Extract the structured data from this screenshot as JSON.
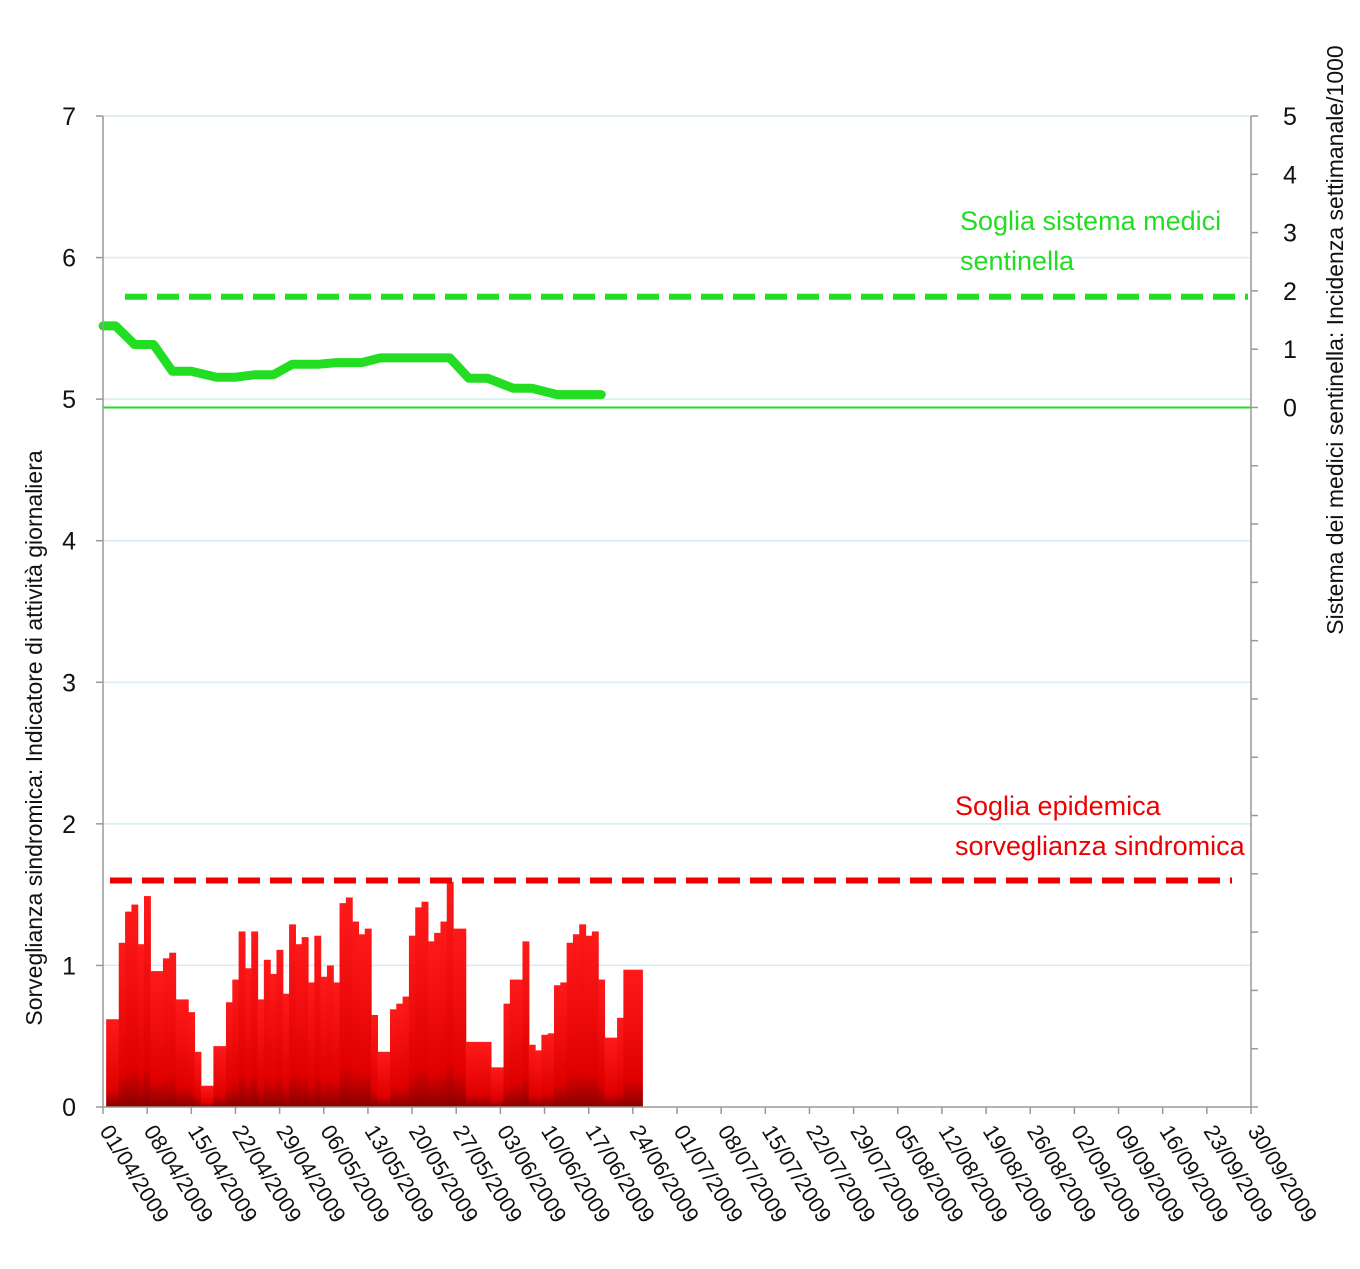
{
  "chart_data": {
    "type": "bar",
    "left_axis": {
      "label": "Sorveglianza sindromica: Indicatore di attività giornaliera",
      "range": [
        0,
        7
      ],
      "ticks": [
        0,
        1,
        2,
        3,
        4,
        5,
        6,
        7
      ]
    },
    "right_axis": {
      "label": "Sistema dei medici sentinella: Incidenza settimanale/1000",
      "range": [
        -12,
        5
      ],
      "ticks": [
        0,
        1,
        2,
        3,
        4,
        5
      ],
      "tick_labels": [
        "0",
        "1",
        "2",
        "3",
        "4",
        "5"
      ]
    },
    "x_axis": {
      "start": "01/04/2009",
      "end": "30/09/2009",
      "tick_labels": [
        "01/04/2009",
        "08/04/2009",
        "15/04/2009",
        "22/04/2009",
        "29/04/2009",
        "06/05/2009",
        "13/05/2009",
        "20/05/2009",
        "27/05/2009",
        "03/06/2009",
        "10/06/2009",
        "17/06/2009",
        "24/06/2009",
        "01/07/2009",
        "08/07/2009",
        "15/07/2009",
        "22/07/2009",
        "29/07/2009",
        "05/08/2009",
        "12/08/2009",
        "19/08/2009",
        "26/08/2009",
        "02/09/2009",
        "09/09/2009",
        "16/09/2009",
        "23/09/2009",
        "30/09/2009"
      ]
    },
    "grid": true,
    "series_daily": {
      "color": "#ee0000",
      "x": [
        "02/04/2009",
        "03/04/2009",
        "04/04/2009",
        "05/04/2009",
        "06/04/2009",
        "07/04/2009",
        "08/04/2009",
        "09/04/2009",
        "10/04/2009",
        "11/04/2009",
        "12/04/2009",
        "13/04/2009",
        "14/04/2009",
        "15/04/2009",
        "16/04/2009",
        "17/04/2009",
        "18/04/2009",
        "19/04/2009",
        "20/04/2009",
        "21/04/2009",
        "22/04/2009",
        "23/04/2009",
        "24/04/2009",
        "25/04/2009",
        "26/04/2009",
        "27/04/2009",
        "28/04/2009",
        "29/04/2009",
        "30/04/2009",
        "01/05/2009",
        "02/05/2009",
        "03/05/2009",
        "04/05/2009",
        "05/05/2009",
        "06/05/2009",
        "07/05/2009",
        "08/05/2009",
        "09/05/2009",
        "10/05/2009",
        "11/05/2009",
        "12/05/2009",
        "13/05/2009",
        "14/05/2009",
        "15/05/2009",
        "16/05/2009",
        "17/05/2009",
        "18/05/2009",
        "19/05/2009",
        "20/05/2009",
        "21/05/2009",
        "22/05/2009",
        "23/05/2009",
        "24/05/2009",
        "25/05/2009",
        "26/05/2009",
        "27/05/2009",
        "28/05/2009",
        "29/05/2009",
        "30/05/2009",
        "31/05/2009",
        "01/06/2009",
        "02/06/2009",
        "03/06/2009",
        "04/06/2009",
        "05/06/2009",
        "06/06/2009",
        "07/06/2009",
        "08/06/2009",
        "09/06/2009",
        "10/06/2009",
        "11/06/2009",
        "12/06/2009",
        "13/06/2009",
        "14/06/2009",
        "15/06/2009",
        "16/06/2009",
        "17/06/2009",
        "18/06/2009",
        "19/06/2009",
        "20/06/2009",
        "21/06/2009",
        "22/06/2009",
        "23/06/2009",
        "24/06/2009",
        "25/06/2009"
      ],
      "values": [
        0.62,
        0.62,
        1.16,
        1.38,
        1.43,
        1.15,
        1.49,
        0.96,
        0.96,
        1.05,
        1.09,
        0.76,
        0.76,
        0.67,
        0.39,
        0.15,
        0.15,
        0.43,
        0.43,
        0.74,
        0.9,
        1.24,
        0.98,
        1.24,
        0.76,
        1.04,
        0.94,
        1.11,
        0.8,
        1.29,
        1.15,
        1.2,
        0.88,
        1.21,
        0.92,
        1.0,
        0.88,
        1.44,
        1.48,
        1.31,
        1.22,
        1.26,
        0.65,
        0.39,
        0.39,
        0.69,
        0.73,
        0.78,
        1.21,
        1.41,
        1.45,
        1.17,
        1.23,
        1.31,
        1.59,
        1.26,
        1.26,
        0.46,
        0.46,
        0.46,
        0.46,
        0.28,
        0.28,
        0.73,
        0.9,
        0.9,
        1.17,
        0.44,
        0.4,
        0.51,
        0.52,
        0.86,
        0.88,
        1.16,
        1.22,
        1.29,
        1.21,
        1.24,
        0.9,
        0.49,
        0.49,
        0.63,
        0.97,
        0.97,
        0.97
      ]
    },
    "series_sentinel": {
      "color": "#22dd22",
      "x": [
        "01/04/2009",
        "03/04/2009",
        "06/04/2009",
        "09/04/2009",
        "12/04/2009",
        "15/04/2009",
        "19/04/2009",
        "22/04/2009",
        "25/04/2009",
        "28/04/2009",
        "01/05/2009",
        "05/05/2009",
        "08/05/2009",
        "12/05/2009",
        "15/05/2009",
        "19/05/2009",
        "22/05/2009",
        "26/05/2009",
        "29/05/2009",
        "01/06/2009",
        "05/06/2009",
        "08/06/2009",
        "12/06/2009",
        "15/06/2009",
        "19/06/2009"
      ],
      "values": [
        1.4,
        1.4,
        1.08,
        1.08,
        0.62,
        0.62,
        0.52,
        0.52,
        0.56,
        0.56,
        0.74,
        0.74,
        0.77,
        0.77,
        0.85,
        0.85,
        0.85,
        0.85,
        0.5,
        0.5,
        0.33,
        0.33,
        0.22,
        0.22,
        0.22
      ]
    },
    "threshold_daily": {
      "value": 1.6,
      "color": "#ee0000",
      "annotation": [
        "Soglia epidemica",
        "sorveglianza sindromica"
      ]
    },
    "threshold_sentinel": {
      "value": 1.9,
      "color": "#22dd22",
      "annotation": [
        "Soglia sistema medici",
        "sentinella"
      ]
    },
    "sentinel_baseline": {
      "value": 0,
      "color": "#22dd22"
    }
  }
}
